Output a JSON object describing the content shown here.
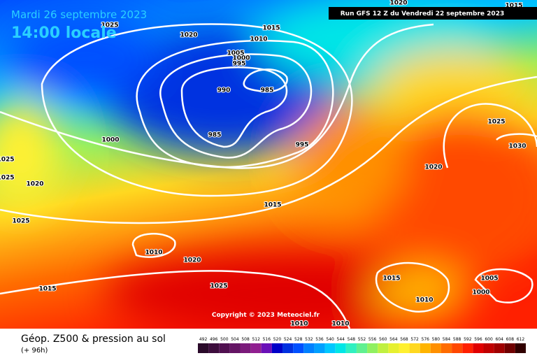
{
  "header": {
    "date": "Mardi 26 septembre 2023",
    "time": "14:00 locale",
    "run": "Run GFS 12 Z du Vendredi 22 septembre 2023"
  },
  "copyright": "Copyright © 2023 Meteociel.fr",
  "footer": {
    "title": "Géop. Z500 & pression au sol",
    "lead": "(+ 96h)"
  },
  "isobar_labels": [
    1020,
    1015,
    1025,
    1020,
    1015,
    1010,
    1005,
    1000,
    995,
    990,
    985,
    985,
    1000,
    995,
    1025,
    1025,
    1020,
    1025,
    1015,
    1010,
    1020,
    1015,
    1025,
    1020,
    1025,
    1030,
    1015,
    1010,
    1005,
    1000,
    1010,
    1010
  ],
  "legend": {
    "values": [
      492,
      496,
      500,
      504,
      508,
      512,
      516,
      520,
      524,
      528,
      532,
      536,
      540,
      544,
      548,
      552,
      556,
      560,
      564,
      568,
      572,
      576,
      580,
      584,
      588,
      592,
      596,
      600,
      604,
      608,
      612
    ],
    "colors": [
      "#2a0a2a",
      "#3d0d3d",
      "#501050",
      "#641464",
      "#7a1a7a",
      "#901f90",
      "#6a10b8",
      "#0000c8",
      "#0030e0",
      "#0050ff",
      "#0080ff",
      "#00a0ff",
      "#00c8ff",
      "#00e6e6",
      "#30f0c0",
      "#60f090",
      "#90f060",
      "#c0f040",
      "#e6f030",
      "#fff030",
      "#ffd820",
      "#ffb400",
      "#ff9000",
      "#ff6c00",
      "#ff4800",
      "#ff2000",
      "#e00000",
      "#c00000",
      "#a00000",
      "#700000",
      "#300000"
    ]
  }
}
